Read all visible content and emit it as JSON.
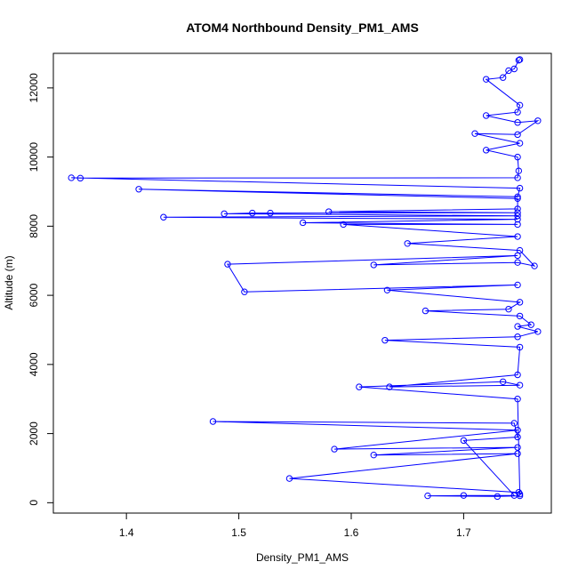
{
  "chart_data": {
    "type": "scatter",
    "title": "ATOM4 Northbound Density_PM1_AMS",
    "xlabel": "Density_PM1_AMS",
    "ylabel": "Altitude (m)",
    "xlim": [
      1.335,
      1.778
    ],
    "ylim": [
      -300,
      13000
    ],
    "x_ticks": [
      1.4,
      1.5,
      1.6,
      1.7
    ],
    "x_tick_labels": [
      "1.4",
      "1.5",
      "1.6",
      "1.7"
    ],
    "y_ticks": [
      0,
      2000,
      4000,
      6000,
      8000,
      10000,
      12000
    ],
    "y_tick_labels": [
      "0",
      "2000",
      "4000",
      "6000",
      "8000",
      "10000",
      "12000"
    ],
    "grid": false,
    "series_color": "#0000ff",
    "marker": "open-circle",
    "connect_points": true,
    "series": [
      {
        "points": [
          [
            1.75,
            200
          ],
          [
            1.73,
            180
          ],
          [
            1.668,
            200
          ],
          [
            1.7,
            210
          ],
          [
            1.745,
            210
          ],
          [
            1.7,
            1800
          ],
          [
            1.748,
            1900
          ],
          [
            1.745,
            2300
          ],
          [
            1.477,
            2350
          ],
          [
            1.748,
            2100
          ],
          [
            1.585,
            1550
          ],
          [
            1.748,
            1600
          ],
          [
            1.62,
            1380
          ],
          [
            1.748,
            1420
          ],
          [
            1.545,
            700
          ],
          [
            1.749,
            300
          ],
          [
            1.75,
            250
          ],
          [
            1.748,
            3000
          ],
          [
            1.607,
            3350
          ],
          [
            1.735,
            3500
          ],
          [
            1.75,
            3400
          ],
          [
            1.634,
            3350
          ],
          [
            1.748,
            3700
          ],
          [
            1.75,
            4500
          ],
          [
            1.63,
            4700
          ],
          [
            1.748,
            4800
          ],
          [
            1.766,
            4950
          ],
          [
            1.748,
            5100
          ],
          [
            1.76,
            5150
          ],
          [
            1.75,
            5400
          ],
          [
            1.666,
            5550
          ],
          [
            1.74,
            5600
          ],
          [
            1.75,
            5800
          ],
          [
            1.632,
            6150
          ],
          [
            1.748,
            6300
          ],
          [
            1.505,
            6100
          ],
          [
            1.49,
            6900
          ],
          [
            1.748,
            7150
          ],
          [
            1.62,
            6880
          ],
          [
            1.748,
            6950
          ],
          [
            1.763,
            6850
          ],
          [
            1.75,
            7300
          ],
          [
            1.65,
            7500
          ],
          [
            1.748,
            7700
          ],
          [
            1.593,
            8050
          ],
          [
            1.748,
            8050
          ],
          [
            1.557,
            8100
          ],
          [
            1.748,
            8200
          ],
          [
            1.433,
            8260
          ],
          [
            1.748,
            8300
          ],
          [
            1.487,
            8360
          ],
          [
            1.512,
            8380
          ],
          [
            1.528,
            8380
          ],
          [
            1.748,
            8390
          ],
          [
            1.58,
            8420
          ],
          [
            1.748,
            8500
          ],
          [
            1.748,
            8800
          ],
          [
            1.411,
            9070
          ],
          [
            1.748,
            8850
          ],
          [
            1.75,
            9100
          ],
          [
            1.351,
            9400
          ],
          [
            1.359,
            9390
          ],
          [
            1.748,
            9400
          ],
          [
            1.749,
            9600
          ],
          [
            1.748,
            10000
          ],
          [
            1.72,
            10200
          ],
          [
            1.75,
            10400
          ],
          [
            1.71,
            10680
          ],
          [
            1.748,
            10650
          ],
          [
            1.766,
            11050
          ],
          [
            1.748,
            11000
          ],
          [
            1.72,
            11200
          ],
          [
            1.748,
            11300
          ],
          [
            1.75,
            11500
          ],
          [
            1.72,
            12250
          ],
          [
            1.735,
            12300
          ],
          [
            1.74,
            12500
          ],
          [
            1.745,
            12550
          ],
          [
            1.749,
            12800
          ],
          [
            1.75,
            12820
          ]
        ]
      }
    ]
  }
}
